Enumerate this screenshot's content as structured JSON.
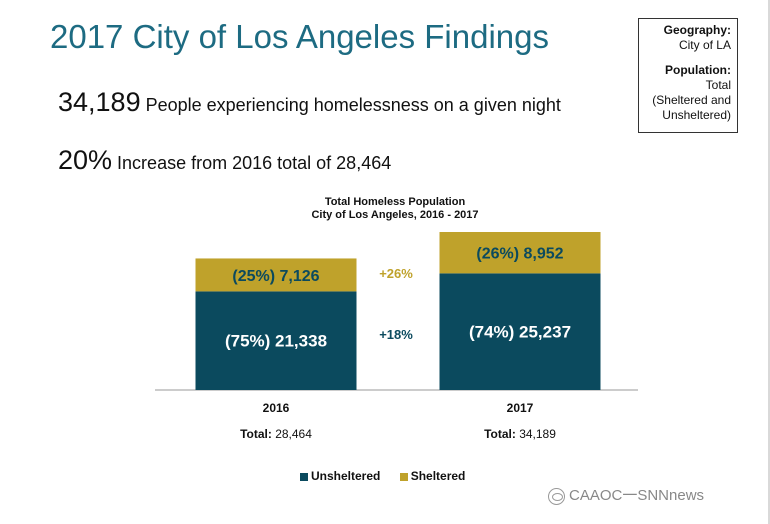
{
  "header": {
    "title": "2017 City of Los Angeles Findings"
  },
  "stats": [
    {
      "big": "34,189",
      "text": " People experiencing homelessness on a given night"
    },
    {
      "big": "20%",
      "text": " Increase from 2016 total of 28,464"
    }
  ],
  "info_box": {
    "geo_label": "Geography:",
    "geo_value": "City of LA",
    "pop_label": "Population:",
    "pop_line1": "Total",
    "pop_line2": "(Sheltered and",
    "pop_line3": "Unsheltered)"
  },
  "watermark": "CAAOC一SNNnews",
  "chart_data": {
    "type": "bar",
    "stacked": true,
    "title": "Total Homeless Population",
    "subtitle": "City of Los Angeles, 2016 - 2017",
    "categories": [
      "2016",
      "2017"
    ],
    "series": [
      {
        "name": "Unsheltered",
        "color": "#0b4a5e",
        "values": [
          21338,
          25237
        ],
        "labels": [
          "(75%) 21,338",
          "(74%) 25,237"
        ]
      },
      {
        "name": "Sheltered",
        "color": "#bfa22b",
        "values": [
          7126,
          8952
        ],
        "labels": [
          "(25%) 7,126",
          "(26%) 8,952"
        ]
      }
    ],
    "totals": [
      {
        "label": "Total:",
        "value": "28,464"
      },
      {
        "label": "Total:",
        "value": "34,189"
      }
    ],
    "change_labels": {
      "sheltered": "+26%",
      "unsheltered": "+18%"
    },
    "ymax": 34189,
    "legend_position": "bottom"
  }
}
